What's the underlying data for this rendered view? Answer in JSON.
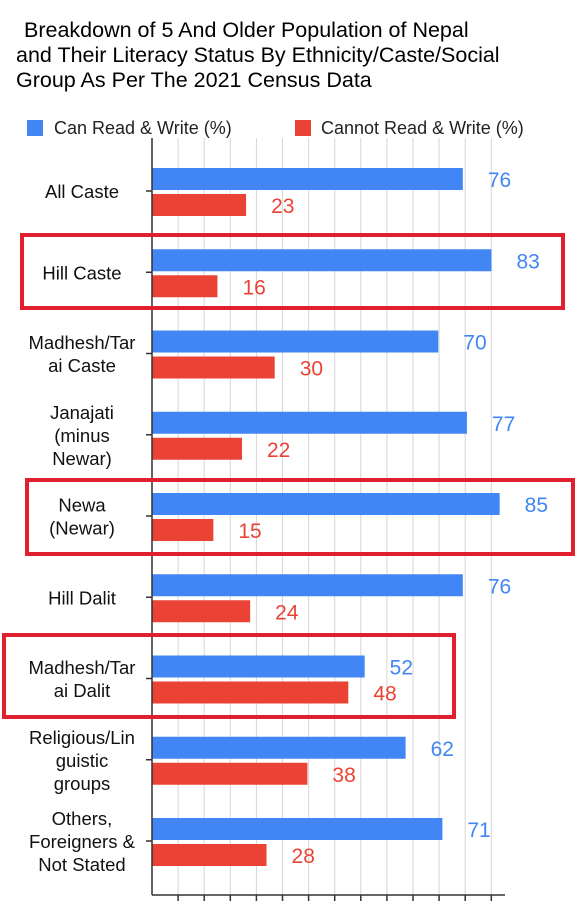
{
  "chart_data": {
    "type": "bar",
    "orientation": "horizontal",
    "title_lines": [
      "Breakdown of 5 And Older Population of Nepal",
      "and Their Literacy Status By Ethnicity/Caste/Social",
      "Group As Per The 2021 Census Data"
    ],
    "legend_position": "top",
    "categories": [
      [
        "All Caste"
      ],
      [
        "Hill Caste"
      ],
      [
        "Madhesh/Tar",
        "ai Caste"
      ],
      [
        "Janajati",
        "(minus",
        "Newar)"
      ],
      [
        "Newa",
        "(Newar)"
      ],
      [
        "Hill Dalit"
      ],
      [
        "Madhesh/Tar",
        "ai Dalit"
      ],
      [
        "Religious/Lin",
        "guistic",
        "groups"
      ],
      [
        "Others,",
        "Foreigners &",
        "Not Stated"
      ]
    ],
    "series": [
      {
        "name": "Can Read & Write (%)",
        "color": "#4285f4",
        "values": [
          76,
          83,
          70,
          77,
          85,
          76,
          52,
          62,
          71
        ]
      },
      {
        "name": "Cannot Read & Write (%)",
        "color": "#ea4335",
        "values": [
          23,
          16,
          30,
          22,
          15,
          24,
          48,
          38,
          28
        ]
      }
    ],
    "xlim": [
      0,
      85
    ],
    "highlighted_categories": [
      1,
      4,
      6
    ],
    "highlight_color": "#e0202e",
    "grid": true
  }
}
